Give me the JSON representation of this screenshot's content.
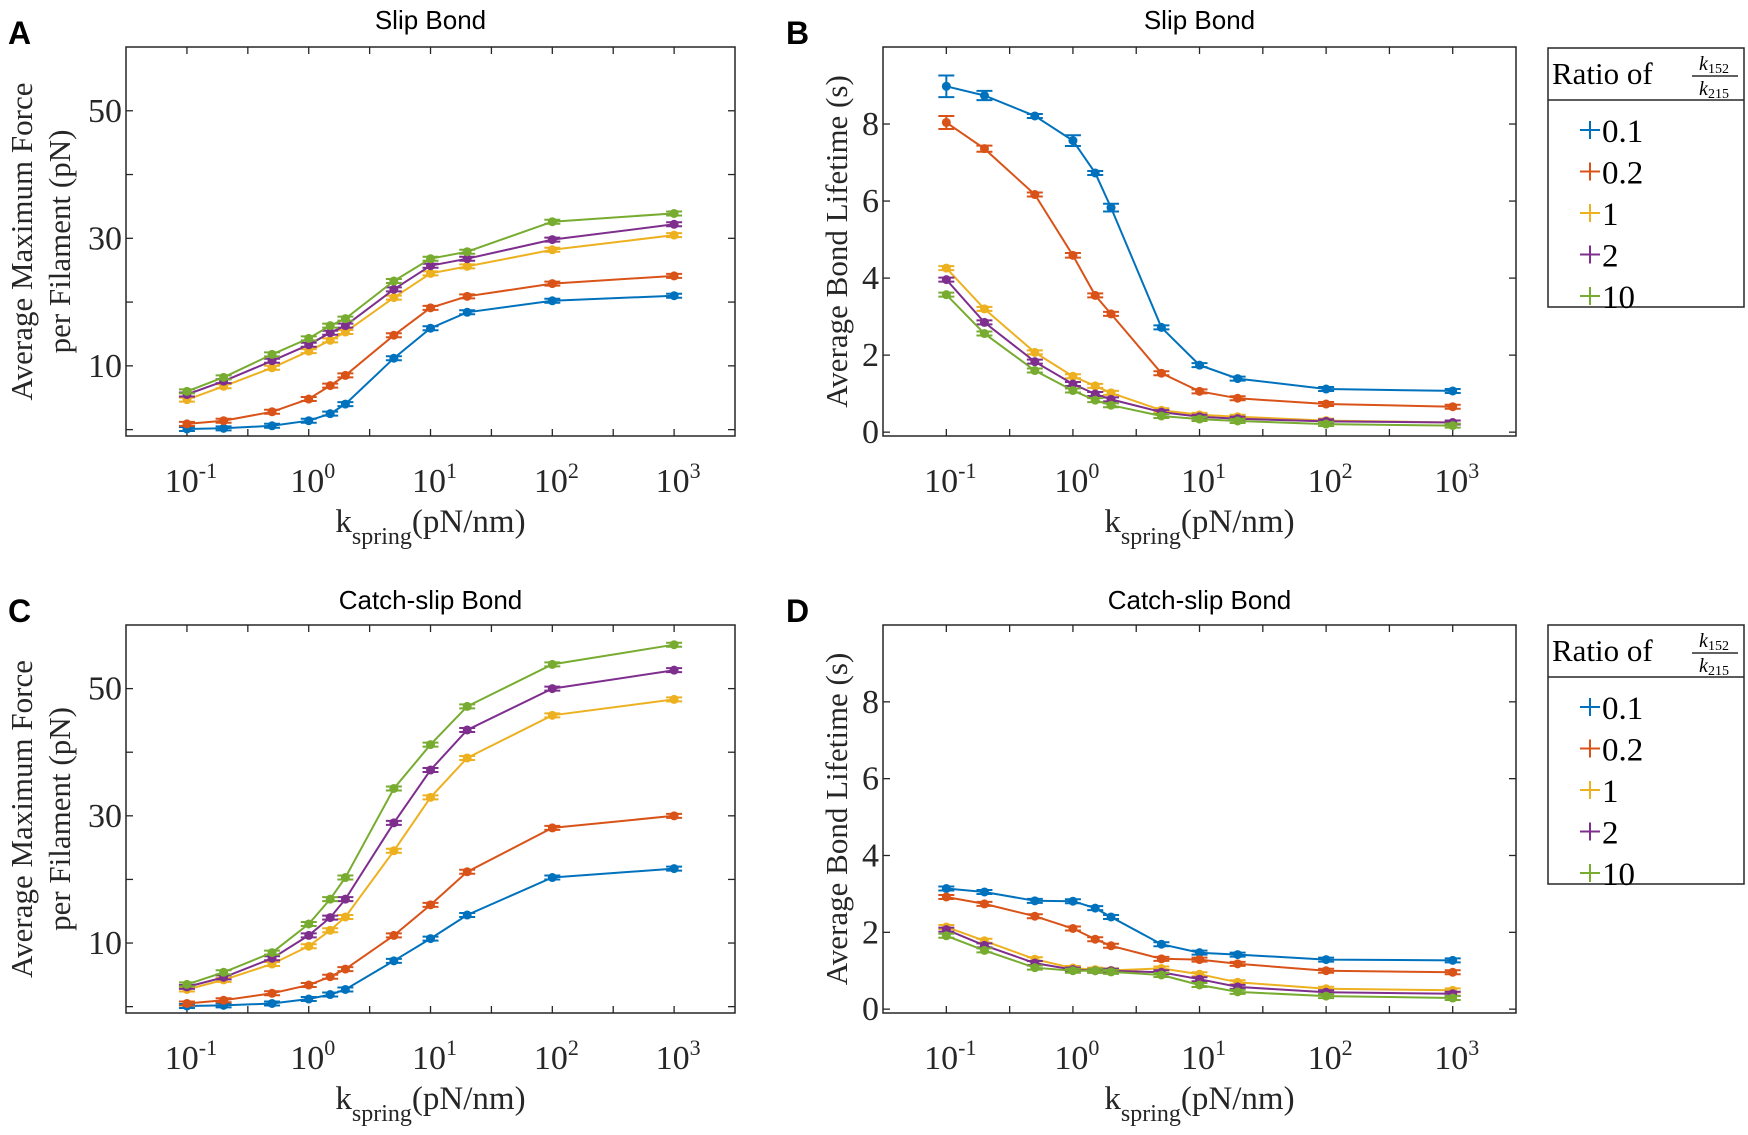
{
  "colors": {
    "0.1": "#0072BD",
    "0.2": "#D95319",
    "1": "#EDB120",
    "2": "#7E2F8E",
    "10": "#77AC30"
  },
  "legend": {
    "title": "Ratio of",
    "numerator": {
      "base": "k",
      "sub": "152"
    },
    "denominator": {
      "base": "k",
      "sub": "215"
    },
    "entries": [
      "0.1",
      "0.2",
      "1",
      "2",
      "10"
    ]
  },
  "chart_data": [
    {
      "panel": "A",
      "type": "line",
      "title": "Slip Bond",
      "ylabel": [
        "Average Maximum Force",
        "per Filament (pN)"
      ],
      "xlabel": {
        "base": "k",
        "sub": "spring",
        "rest": "(pN/nm)"
      },
      "xscale": "log",
      "xlim": [
        0.0316,
        3162
      ],
      "ylim": [
        -1,
        60
      ],
      "x_ticks": [
        {
          "base": "10",
          "exp": "-1"
        },
        {
          "base": "10",
          "exp": "0"
        },
        {
          "base": "10",
          "exp": "1"
        },
        {
          "base": "10",
          "exp": "2"
        },
        {
          "base": "10",
          "exp": "3"
        }
      ],
      "y_ticks": [
        0,
        10,
        20,
        30,
        40,
        50
      ],
      "y_tick_labels": {
        "10": "10",
        "30": "30",
        "50": "50"
      },
      "x": [
        0.1,
        0.2,
        0.5,
        1,
        1.5,
        2,
        5,
        10,
        20,
        100,
        1000
      ],
      "series": [
        {
          "name": "0.1",
          "values": [
            0.1,
            0.2,
            0.6,
            1.4,
            2.5,
            4.0,
            11.2,
            15.9,
            18.4,
            20.2,
            21.0
          ]
        },
        {
          "name": "0.2",
          "values": [
            0.9,
            1.4,
            2.8,
            4.8,
            6.9,
            8.5,
            14.8,
            19.1,
            20.9,
            22.9,
            24.1
          ]
        },
        {
          "name": "1",
          "values": [
            4.7,
            6.8,
            9.7,
            12.3,
            14.0,
            15.3,
            20.7,
            24.5,
            25.6,
            28.2,
            30.5
          ]
        },
        {
          "name": "2",
          "values": [
            5.5,
            7.6,
            10.8,
            13.3,
            15.2,
            16.3,
            22.0,
            25.7,
            26.8,
            29.8,
            32.2
          ]
        },
        {
          "name": "10",
          "values": [
            6.0,
            8.2,
            11.8,
            14.3,
            16.3,
            17.4,
            23.3,
            26.8,
            27.9,
            32.6,
            33.9
          ]
        }
      ],
      "legend": false
    },
    {
      "panel": "B",
      "type": "line",
      "title": "Slip Bond",
      "ylabel": [
        "Average Bond Lifetime (s)"
      ],
      "xlabel": {
        "base": "k",
        "sub": "spring",
        "rest": "(pN/nm)"
      },
      "xscale": "log",
      "xlim": [
        0.0316,
        3162
      ],
      "ylim": [
        -0.1,
        10
      ],
      "x_ticks": [
        {
          "base": "10",
          "exp": "-1"
        },
        {
          "base": "10",
          "exp": "0"
        },
        {
          "base": "10",
          "exp": "1"
        },
        {
          "base": "10",
          "exp": "2"
        },
        {
          "base": "10",
          "exp": "3"
        }
      ],
      "y_ticks": [
        0,
        2,
        4,
        6,
        8
      ],
      "y_tick_labels": {
        "0": "0",
        "2": "2",
        "4": "4",
        "6": "6",
        "8": "8"
      },
      "x": [
        0.1,
        0.2,
        0.5,
        1,
        1.5,
        2,
        5,
        10,
        20,
        100,
        1000
      ],
      "series": [
        {
          "name": "0.1",
          "values": [
            8.98,
            8.74,
            8.21,
            7.57,
            6.73,
            5.83,
            2.72,
            1.74,
            1.39,
            1.12,
            1.07
          ],
          "errors": [
            0.28,
            0.12,
            0.05,
            0.14,
            0.05,
            0.1,
            0.04,
            0.04,
            0.03,
            0.03,
            0.03
          ]
        },
        {
          "name": "0.2",
          "values": [
            8.04,
            7.36,
            6.17,
            4.59,
            3.55,
            3.07,
            1.53,
            1.06,
            0.88,
            0.73,
            0.66
          ],
          "errors": [
            0.17,
            0.08,
            0.04,
            0.06,
            0.05,
            0.05,
            0.04,
            0.03,
            0.03,
            0.03,
            0.03
          ]
        },
        {
          "name": "1",
          "values": [
            4.26,
            3.2,
            2.07,
            1.45,
            1.2,
            1.02,
            0.57,
            0.45,
            0.4,
            0.3,
            0.25
          ]
        },
        {
          "name": "2",
          "values": [
            3.96,
            2.85,
            1.83,
            1.25,
            0.99,
            0.85,
            0.52,
            0.4,
            0.35,
            0.28,
            0.25
          ]
        },
        {
          "name": "10",
          "values": [
            3.57,
            2.56,
            1.6,
            1.08,
            0.83,
            0.7,
            0.42,
            0.34,
            0.29,
            0.21,
            0.17
          ]
        }
      ],
      "legend": true
    },
    {
      "panel": "C",
      "type": "line",
      "title": "Catch-slip Bond",
      "ylabel": [
        "Average Maximum Force",
        "per Filament (pN)"
      ],
      "xlabel": {
        "base": "k",
        "sub": "spring",
        "rest": "(pN/nm)"
      },
      "xscale": "log",
      "xlim": [
        0.0316,
        3162
      ],
      "ylim": [
        -1,
        60
      ],
      "x_ticks": [
        {
          "base": "10",
          "exp": "-1"
        },
        {
          "base": "10",
          "exp": "0"
        },
        {
          "base": "10",
          "exp": "1"
        },
        {
          "base": "10",
          "exp": "2"
        },
        {
          "base": "10",
          "exp": "3"
        }
      ],
      "y_ticks": [
        0,
        10,
        20,
        30,
        40,
        50
      ],
      "y_tick_labels": {
        "10": "10",
        "30": "30",
        "50": "50"
      },
      "x": [
        0.1,
        0.2,
        0.5,
        1,
        1.5,
        2,
        5,
        10,
        20,
        100,
        1000
      ],
      "series": [
        {
          "name": "0.1",
          "values": [
            0.1,
            0.2,
            0.5,
            1.2,
            1.9,
            2.7,
            7.2,
            10.7,
            14.4,
            20.3,
            21.7
          ]
        },
        {
          "name": "0.2",
          "values": [
            0.5,
            1.0,
            2.1,
            3.4,
            4.7,
            5.9,
            11.2,
            16.0,
            21.2,
            28.1,
            30.0
          ]
        },
        {
          "name": "1",
          "values": [
            2.7,
            4.2,
            6.7,
            9.5,
            12.0,
            14.1,
            24.5,
            32.9,
            39.1,
            45.8,
            48.3
          ]
        },
        {
          "name": "2",
          "values": [
            3.1,
            4.6,
            7.6,
            11.2,
            14.0,
            16.9,
            28.9,
            37.2,
            43.5,
            50.0,
            52.9
          ]
        },
        {
          "name": "10",
          "values": [
            3.5,
            5.4,
            8.5,
            13.0,
            16.9,
            20.3,
            34.3,
            41.2,
            47.2,
            53.8,
            56.9
          ]
        }
      ],
      "legend": false
    },
    {
      "panel": "D",
      "type": "line",
      "title": "Catch-slip Bond",
      "ylabel": [
        "Average Bond Lifetime (s)"
      ],
      "xlabel": {
        "base": "k",
        "sub": "spring",
        "rest": "(pN/nm)"
      },
      "xscale": "log",
      "xlim": [
        0.0316,
        3162
      ],
      "ylim": [
        -0.1,
        10
      ],
      "x_ticks": [
        {
          "base": "10",
          "exp": "-1"
        },
        {
          "base": "10",
          "exp": "0"
        },
        {
          "base": "10",
          "exp": "1"
        },
        {
          "base": "10",
          "exp": "2"
        },
        {
          "base": "10",
          "exp": "3"
        }
      ],
      "y_ticks": [
        0,
        2,
        4,
        6,
        8
      ],
      "y_tick_labels": {
        "0": "0",
        "2": "2",
        "4": "4",
        "6": "6",
        "8": "8"
      },
      "x": [
        0.1,
        0.2,
        0.5,
        1,
        1.5,
        2,
        5,
        10,
        20,
        100,
        1000
      ],
      "series": [
        {
          "name": "0.1",
          "values": [
            3.14,
            3.05,
            2.82,
            2.81,
            2.63,
            2.4,
            1.69,
            1.47,
            1.42,
            1.29,
            1.27
          ]
        },
        {
          "name": "0.2",
          "values": [
            2.92,
            2.74,
            2.42,
            2.1,
            1.82,
            1.65,
            1.31,
            1.29,
            1.18,
            1.0,
            0.96
          ]
        },
        {
          "name": "1",
          "values": [
            2.14,
            1.78,
            1.3,
            1.07,
            1.03,
            1.01,
            1.06,
            0.91,
            0.7,
            0.53,
            0.49
          ]
        },
        {
          "name": "2",
          "values": [
            2.07,
            1.66,
            1.2,
            1.03,
            1.0,
            1.0,
            0.96,
            0.78,
            0.58,
            0.44,
            0.4
          ]
        },
        {
          "name": "10",
          "values": [
            1.91,
            1.53,
            1.08,
            1.0,
            1.0,
            0.97,
            0.89,
            0.63,
            0.45,
            0.34,
            0.29
          ]
        }
      ],
      "legend": true
    }
  ]
}
